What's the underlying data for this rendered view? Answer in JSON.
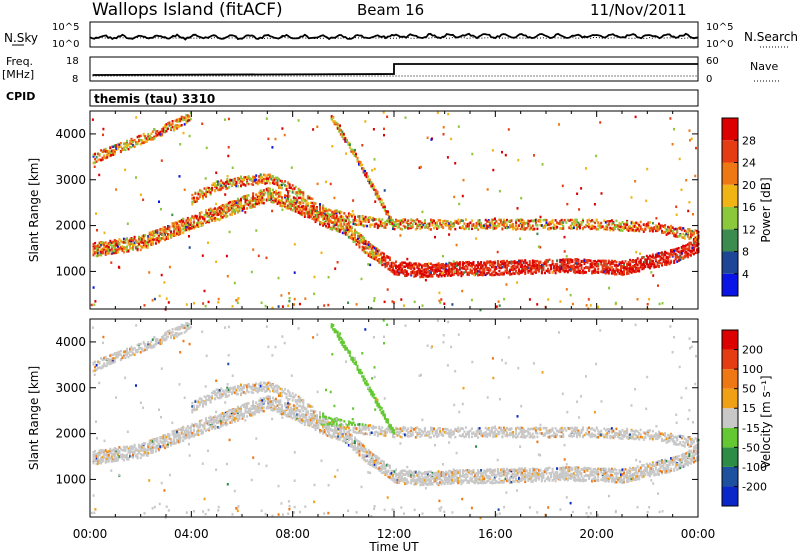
{
  "header": {
    "station": "Wallops Island (fitACF)",
    "beam": "Beam 16",
    "date": "11/Nov/2011"
  },
  "noise_panel": {
    "left_label": "N.Sky",
    "left_tick_top": "10^5",
    "left_tick_bottom": "10^0",
    "right_label": "N.Search",
    "right_tick_top": "10^5",
    "right_tick_bottom": "10^0"
  },
  "freq_panel": {
    "left_label": "Freq.",
    "left_unit": "[MHz]",
    "left_tick_top": "18",
    "left_tick_bottom": "8",
    "right_label": "Nave",
    "right_tick_top": "60",
    "right_tick_bottom": "0"
  },
  "cpid_panel": {
    "label": "CPID",
    "program": "themis (tau) 3310"
  },
  "x_axis": {
    "label": "Time UT",
    "ticks": [
      "00:00",
      "04:00",
      "08:00",
      "12:00",
      "16:00",
      "20:00",
      "00:00"
    ]
  },
  "y_axis": {
    "label": "Slant Range [km]",
    "ticks": [
      "1000",
      "2000",
      "3000",
      "4000"
    ]
  },
  "power_colorbar": {
    "label": "Power [dB]",
    "ticks": [
      "4",
      "8",
      "12",
      "16",
      "20",
      "24",
      "28"
    ],
    "colors": [
      "#0a14e6",
      "#1e4696",
      "#3c8c50",
      "#8cc83c",
      "#f0b414",
      "#f07814",
      "#e63c14",
      "#dc0000"
    ]
  },
  "velocity_colorbar": {
    "label": "Velocity [m s⁻¹]",
    "ticks": [
      "200",
      "100",
      "50",
      "15",
      "-15",
      "-50",
      "-100",
      "-200"
    ],
    "colors": [
      "#0a28c8",
      "#1e50a0",
      "#2d8c46",
      "#64c832",
      "#c8c8c8",
      "#f0a014",
      "#f07814",
      "#e63c14",
      "#dc0000"
    ]
  },
  "chart_data": {
    "type": "heatmap",
    "x_range_hours": [
      0,
      24
    ],
    "y_range_km": [
      180,
      4500
    ],
    "nave_step": {
      "before_ut": "12:00",
      "after_ut": "12:00"
    },
    "bands": [
      {
        "name": "lower band",
        "points": [
          [
            0.1,
            1500
          ],
          [
            2,
            1650
          ],
          [
            4,
            2100
          ],
          [
            5,
            2300
          ],
          [
            6,
            2500
          ],
          [
            7,
            2700
          ],
          [
            8,
            2500
          ],
          [
            9,
            2200
          ],
          [
            10,
            2000
          ],
          [
            11,
            1500
          ],
          [
            12,
            1100
          ],
          [
            13,
            1050
          ],
          [
            16,
            1100
          ],
          [
            19,
            1150
          ],
          [
            21,
            1100
          ],
          [
            23,
            1350
          ],
          [
            24,
            1600
          ]
        ]
      },
      {
        "name": "upper band",
        "points": [
          [
            0.1,
            3500
          ],
          [
            2,
            3900
          ],
          [
            4,
            4400
          ]
        ]
      },
      {
        "name": "middle band",
        "points": [
          [
            4,
            2600
          ],
          [
            5,
            2900
          ],
          [
            6,
            3000
          ],
          [
            7,
            3050
          ],
          [
            8,
            2800
          ],
          [
            9,
            2400
          ],
          [
            10,
            2200
          ],
          [
            11,
            2100
          ],
          [
            12,
            2050
          ],
          [
            16,
            2050
          ],
          [
            20,
            2050
          ],
          [
            22,
            2000
          ],
          [
            24,
            1800
          ]
        ]
      },
      {
        "name": "diagonal streak",
        "points": [
          [
            9.5,
            4400
          ],
          [
            10.5,
            3500
          ],
          [
            11.5,
            2500
          ],
          [
            12,
            2000
          ]
        ]
      }
    ]
  }
}
